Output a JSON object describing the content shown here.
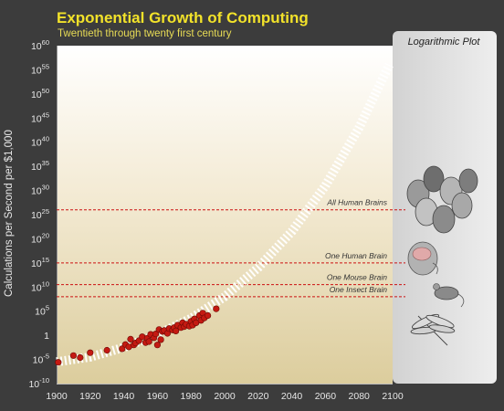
{
  "header": {
    "title": "Exponential Growth of Computing",
    "subtitle": "Twentieth through twenty first century"
  },
  "side_panel": {
    "title": "Logarithmic Plot",
    "icons": [
      "human-heads-icon",
      "brain-head-icon",
      "mouse-icon",
      "dragonfly-icon"
    ]
  },
  "colors": {
    "background": "#3c3c3c",
    "title": "#f2e22a",
    "data_point": "#c41a12",
    "reference_line": "#cc1111",
    "trend_band": "#ffffff"
  },
  "chart_data": {
    "type": "scatter",
    "title": "Exponential Growth of Computing",
    "subtitle": "Twentieth through twenty first century",
    "xlabel": "",
    "ylabel": "Calculations per Second per $1,000",
    "yscale": "log",
    "xlim": [
      1900,
      2100
    ],
    "ylim_exponent": [
      -10,
      60
    ],
    "x_ticks": [
      "1900",
      "1920",
      "1940",
      "1960",
      "1980",
      "2000",
      "2020",
      "2040",
      "2060",
      "2080",
      "2100"
    ],
    "y_ticks": [
      {
        "base": "10",
        "exp": "60"
      },
      {
        "base": "10",
        "exp": "55"
      },
      {
        "base": "10",
        "exp": "50"
      },
      {
        "base": "10",
        "exp": "45"
      },
      {
        "base": "10",
        "exp": "40"
      },
      {
        "base": "10",
        "exp": "35"
      },
      {
        "base": "10",
        "exp": "30"
      },
      {
        "base": "10",
        "exp": "25"
      },
      {
        "base": "10",
        "exp": "20"
      },
      {
        "base": "10",
        "exp": "15"
      },
      {
        "base": "10",
        "exp": "10"
      },
      {
        "base": "10",
        "exp": "5"
      },
      {
        "base": "1",
        "exp": ""
      },
      {
        "base": "10",
        "exp": "-5"
      },
      {
        "base": "10",
        "exp": "-10"
      }
    ],
    "series": [
      {
        "points": [
          [
            1901,
            -5.6
          ],
          [
            1910,
            -4.2
          ],
          [
            1914,
            -4.6
          ],
          [
            1920,
            -3.6
          ],
          [
            1930,
            -3.1
          ],
          [
            1939,
            -2.8
          ],
          [
            1941,
            -1.9
          ],
          [
            1943,
            -2.4
          ],
          [
            1944,
            -0.8
          ],
          [
            1946,
            -2.0
          ],
          [
            1947,
            -1.6
          ],
          [
            1949,
            -1.1
          ],
          [
            1951,
            -0.3
          ],
          [
            1953,
            -1.5
          ],
          [
            1954,
            -0.6
          ],
          [
            1955,
            -1.3
          ],
          [
            1956,
            0.2
          ],
          [
            1958,
            -0.5
          ],
          [
            1959,
            0.3
          ],
          [
            1960,
            -2.0
          ],
          [
            1961,
            1.2
          ],
          [
            1962,
            -0.9
          ],
          [
            1963,
            0.8
          ],
          [
            1964,
            1.0
          ],
          [
            1966,
            0.4
          ],
          [
            1967,
            1.4
          ],
          [
            1969,
            1.1
          ],
          [
            1970,
            1.6
          ],
          [
            1971,
            0.9
          ],
          [
            1972,
            2.1
          ],
          [
            1974,
            1.6
          ],
          [
            1975,
            2.6
          ],
          [
            1976,
            1.8
          ],
          [
            1977,
            2.3
          ],
          [
            1979,
            1.9
          ],
          [
            1980,
            2.9
          ],
          [
            1981,
            2.1
          ],
          [
            1982,
            3.4
          ],
          [
            1983,
            2.6
          ],
          [
            1985,
            4.1
          ],
          [
            1986,
            3.1
          ],
          [
            1987,
            4.6
          ],
          [
            1988,
            3.6
          ],
          [
            1990,
            4.1
          ],
          [
            1995,
            5.5
          ]
        ]
      }
    ],
    "trend": {
      "style": "dashed white band",
      "x": [
        1900,
        1920,
        1940,
        1960,
        1980,
        2000,
        2020,
        2040,
        2060,
        2080,
        2098
      ],
      "y_exponent": [
        -5.5,
        -4.5,
        -2.5,
        0.2,
        3.5,
        8,
        14,
        21.5,
        31,
        43,
        56
      ]
    },
    "reference_lines": [
      {
        "label": "All Human Brains",
        "y_exponent": 26
      },
      {
        "label": "One Human Brain",
        "y_exponent": 15
      },
      {
        "label": "One Mouse Brain",
        "y_exponent": 10.5
      },
      {
        "label": "One Insect Brain",
        "y_exponent": 8
      }
    ],
    "grid": false,
    "legend": "none"
  }
}
